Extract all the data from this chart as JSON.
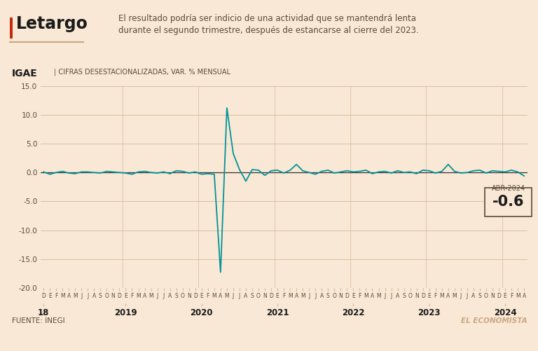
{
  "title": "Letargo",
  "subtitle": "El resultado podría ser indicio de una actividad que se mantendrá lenta\ndurante el segundo trimestre, después de estancarse al cierre del 2023.",
  "chart_label": "IGAE",
  "chart_sublabel": "CIFRAS DESESTACIONALIZADAS, VAR. % MENSUAL",
  "source": "FUENTE: INEGI",
  "watermark": "EL ECONOMISTA",
  "annotation_value": "-0.6",
  "annotation_label": "ABR-2024",
  "bg_color": "#f9e8d5",
  "line_color": "#00939a",
  "zero_line_color": "#333333",
  "grid_color": "#d4b89a",
  "ylim": [
    -20.0,
    15.0
  ],
  "yticks": [
    -20.0,
    -15.0,
    -10.0,
    -5.0,
    0.0,
    5.0,
    10.0,
    15.0
  ],
  "months": [
    "D",
    "E",
    "F",
    "M",
    "A",
    "M",
    "J",
    "J",
    "A",
    "S",
    "O",
    "N",
    "D",
    "E",
    "F",
    "M",
    "A",
    "M",
    "J",
    "J",
    "A",
    "S",
    "O",
    "N",
    "D",
    "E",
    "F",
    "M",
    "A",
    "M",
    "J",
    "J",
    "A",
    "S",
    "O",
    "N",
    "D",
    "E",
    "F",
    "M",
    "A",
    "M",
    "J",
    "J",
    "A",
    "S",
    "O",
    "N",
    "D",
    "E",
    "F",
    "M",
    "A",
    "M",
    "J",
    "J",
    "A",
    "S",
    "O",
    "N",
    "D",
    "E",
    "F",
    "M",
    "A",
    "M",
    "J",
    "J",
    "A",
    "S",
    "O",
    "N",
    "D",
    "E",
    "F",
    "M",
    "A"
  ],
  "year_labels": [
    "18",
    "2019",
    "2020",
    "2021",
    "2022",
    "2023",
    "2024"
  ],
  "year_positions": [
    0,
    13,
    25,
    37,
    49,
    61,
    73
  ],
  "values": [
    0.1,
    -0.3,
    0.0,
    0.2,
    -0.1,
    -0.2,
    0.1,
    0.1,
    0.0,
    -0.1,
    0.2,
    0.1,
    0.0,
    -0.1,
    -0.3,
    0.1,
    0.2,
    0.0,
    -0.1,
    0.1,
    -0.2,
    0.3,
    0.2,
    -0.1,
    0.1,
    -0.3,
    -0.2,
    -0.3,
    -17.3,
    11.2,
    3.3,
    0.5,
    -1.5,
    0.5,
    0.4,
    -0.5,
    0.3,
    0.4,
    -0.1,
    0.4,
    1.4,
    0.3,
    0.0,
    -0.3,
    0.2,
    0.4,
    -0.1,
    0.1,
    0.3,
    0.1,
    0.2,
    0.4,
    -0.2,
    0.1,
    0.2,
    -0.1,
    0.3,
    0.0,
    0.1,
    -0.2,
    0.4,
    0.3,
    -0.1,
    0.2,
    1.4,
    0.2,
    -0.1,
    0.0,
    0.3,
    0.4,
    -0.1,
    0.3,
    0.2,
    0.1,
    0.4,
    0.1,
    -0.6
  ],
  "top_bar_color": "#1a1a1a",
  "title_color": "#1a1a1a",
  "subtitle_color": "#5a4a3a",
  "underline_color": "#c8a882",
  "annotation_box_edge": "#5a4a3a",
  "tick_label_color": "#5a4a3a",
  "year_label_color": "#1a1a1a"
}
